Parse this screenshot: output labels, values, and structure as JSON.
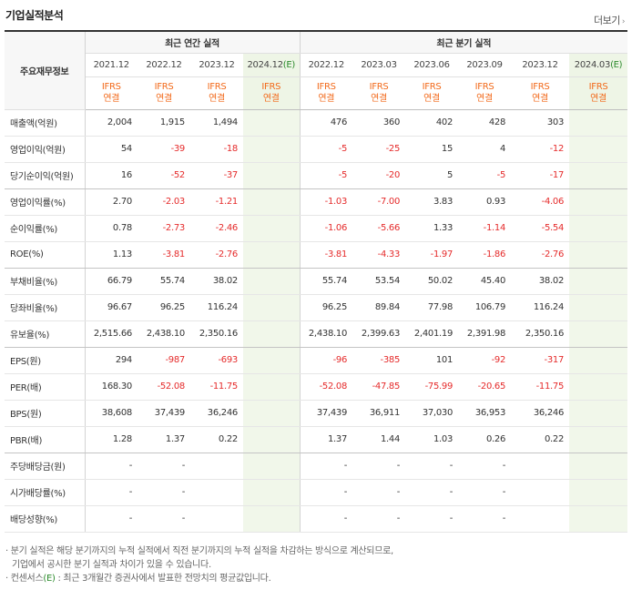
{
  "section": {
    "title": "기업실적분석",
    "more_label": "더보기"
  },
  "table": {
    "row_header_label": "주요재무정보",
    "groups": [
      {
        "label": "최근 연간 실적"
      },
      {
        "label": "최근 분기 실적"
      }
    ],
    "periods": [
      {
        "label": "2021.12",
        "acct": [
          "IFRS",
          "연결"
        ],
        "estimate": false
      },
      {
        "label": "2022.12",
        "acct": [
          "IFRS",
          "연결"
        ],
        "estimate": false
      },
      {
        "label": "2023.12",
        "acct": [
          "IFRS",
          "연결"
        ],
        "estimate": false
      },
      {
        "label": "2024.12",
        "suffix": "(E)",
        "acct": [
          "IFRS",
          "연결"
        ],
        "estimate": true
      },
      {
        "label": "2022.12",
        "acct": [
          "IFRS",
          "연결"
        ],
        "estimate": false
      },
      {
        "label": "2023.03",
        "acct": [
          "IFRS",
          "연결"
        ],
        "estimate": false
      },
      {
        "label": "2023.06",
        "acct": [
          "IFRS",
          "연결"
        ],
        "estimate": false
      },
      {
        "label": "2023.09",
        "acct": [
          "IFRS",
          "연결"
        ],
        "estimate": false
      },
      {
        "label": "2023.12",
        "acct": [
          "IFRS",
          "연결"
        ],
        "estimate": false
      },
      {
        "label": "2024.03",
        "suffix": "(E)",
        "acct": [
          "IFRS",
          "연결"
        ],
        "estimate": true
      }
    ],
    "rows": [
      {
        "label": "매출액(억원)",
        "values": [
          "2,004",
          "1,915",
          "1,494",
          "",
          "476",
          "360",
          "402",
          "428",
          "303",
          ""
        ]
      },
      {
        "label": "영업이익(억원)",
        "values": [
          "54",
          "-39",
          "-18",
          "",
          "-5",
          "-25",
          "15",
          "4",
          "-12",
          ""
        ]
      },
      {
        "label": "당기순이익(억원)",
        "values": [
          "16",
          "-52",
          "-37",
          "",
          "-5",
          "-20",
          "5",
          "-5",
          "-17",
          ""
        ]
      },
      {
        "label": "영업이익률(%)",
        "values": [
          "2.70",
          "-2.03",
          "-1.21",
          "",
          "-1.03",
          "-7.00",
          "3.83",
          "0.93",
          "-4.06",
          ""
        ]
      },
      {
        "label": "순이익률(%)",
        "values": [
          "0.78",
          "-2.73",
          "-2.46",
          "",
          "-1.06",
          "-5.66",
          "1.33",
          "-1.14",
          "-5.54",
          ""
        ]
      },
      {
        "label": "ROE(%)",
        "values": [
          "1.13",
          "-3.81",
          "-2.76",
          "",
          "-3.81",
          "-4.33",
          "-1.97",
          "-1.86",
          "-2.76",
          ""
        ]
      },
      {
        "label": "부채비율(%)",
        "values": [
          "66.79",
          "55.74",
          "38.02",
          "",
          "55.74",
          "53.54",
          "50.02",
          "45.40",
          "38.02",
          ""
        ]
      },
      {
        "label": "당좌비율(%)",
        "values": [
          "96.67",
          "96.25",
          "116.24",
          "",
          "96.25",
          "89.84",
          "77.98",
          "106.79",
          "116.24",
          ""
        ]
      },
      {
        "label": "유보율(%)",
        "values": [
          "2,515.66",
          "2,438.10",
          "2,350.16",
          "",
          "2,438.10",
          "2,399.63",
          "2,401.19",
          "2,391.98",
          "2,350.16",
          ""
        ]
      },
      {
        "label": "EPS(원)",
        "values": [
          "294",
          "-987",
          "-693",
          "",
          "-96",
          "-385",
          "101",
          "-92",
          "-317",
          ""
        ]
      },
      {
        "label": "PER(배)",
        "values": [
          "168.30",
          "-52.08",
          "-11.75",
          "",
          "-52.08",
          "-47.85",
          "-75.99",
          "-20.65",
          "-11.75",
          ""
        ]
      },
      {
        "label": "BPS(원)",
        "values": [
          "38,608",
          "37,439",
          "36,246",
          "",
          "37,439",
          "36,911",
          "37,030",
          "36,953",
          "36,246",
          ""
        ]
      },
      {
        "label": "PBR(배)",
        "values": [
          "1.28",
          "1.37",
          "0.22",
          "",
          "1.37",
          "1.44",
          "1.03",
          "0.26",
          "0.22",
          ""
        ]
      },
      {
        "label": "주당배당금(원)",
        "values": [
          "-",
          "-",
          "",
          "",
          "-",
          "-",
          "-",
          "-",
          "",
          ""
        ]
      },
      {
        "label": "시가배당률(%)",
        "values": [
          "-",
          "-",
          "",
          "",
          "-",
          "-",
          "-",
          "-",
          "",
          ""
        ]
      },
      {
        "label": "배당성향(%)",
        "values": [
          "-",
          "-",
          "",
          "",
          "-",
          "-",
          "-",
          "-",
          "",
          ""
        ]
      }
    ]
  },
  "notes": [
    "· 분기 실적은 해당 분기까지의 누적 실적에서 직전 분기까지의 누적 실적을 차감하는 방식으로 계산되므로,",
    "기업에서 공시한 분기 실적과 차이가 있을 수 있습니다.",
    "· 컨센서스(E) : 최근 3개월간 증권사에서 발표한 전망치의 평균값입니다."
  ],
  "colors": {
    "negative": "#e52b2b",
    "accent_orange": "#f26a1b",
    "estimate_bg": "#f1f7ea"
  }
}
